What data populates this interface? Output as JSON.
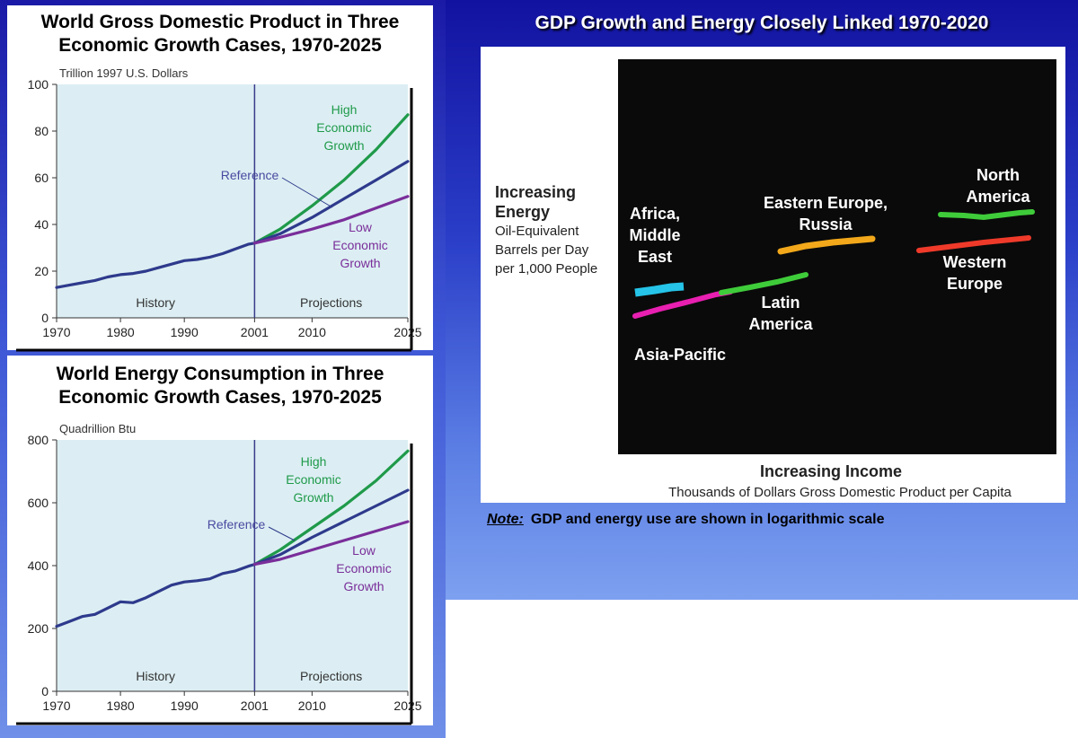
{
  "chart_data": [
    {
      "type": "line",
      "title": "World Gross Domestic Product in Three Economic Growth Cases, 1970-2025",
      "ylabel": "Trillion 1997 U.S. Dollars",
      "ylim": [
        0,
        100
      ],
      "yticks": [
        0,
        20,
        40,
        60,
        80,
        100
      ],
      "xticks": [
        1970,
        1980,
        1990,
        2001,
        2010,
        2025
      ],
      "xlim": [
        1970,
        2025
      ],
      "divider_x": 2001,
      "region_labels": [
        "History",
        "Projections"
      ],
      "series": [
        {
          "key": "history",
          "color": "#2e3a8c",
          "x": [
            1970,
            1972,
            1974,
            1976,
            1978,
            1980,
            1982,
            1984,
            1986,
            1988,
            1990,
            1992,
            1994,
            1996,
            1998,
            2000,
            2001
          ],
          "y": [
            13,
            14,
            15,
            16,
            17.5,
            18.5,
            19,
            20,
            21.5,
            23,
            24.5,
            25,
            26,
            27.5,
            29.5,
            31.5,
            32
          ]
        },
        {
          "key": "high",
          "name": "High Economic Growth",
          "color": "#1f9a4a",
          "x": [
            2001,
            2005,
            2010,
            2015,
            2020,
            2025
          ],
          "y": [
            32,
            38,
            48,
            59,
            72,
            87
          ]
        },
        {
          "key": "ref",
          "name": "Reference",
          "color": "#2e3a8c",
          "x": [
            2001,
            2005,
            2010,
            2015,
            2020,
            2025
          ],
          "y": [
            32,
            36,
            43,
            51,
            59,
            67
          ]
        },
        {
          "key": "low",
          "name": "Low Economic Growth",
          "color": "#7a2e9a",
          "x": [
            2001,
            2005,
            2010,
            2015,
            2020,
            2025
          ],
          "y": [
            32,
            34.5,
            38,
            42,
            47,
            52
          ]
        }
      ],
      "annotations": {
        "high": [
          "High",
          "Economic",
          "Growth"
        ],
        "reference": "Reference",
        "low": [
          "Low",
          "Economic",
          "Growth"
        ]
      }
    },
    {
      "type": "line",
      "title": "World Energy Consumption in Three Economic Growth Cases, 1970-2025",
      "ylabel": "Quadrillion Btu",
      "ylim": [
        0,
        800
      ],
      "yticks": [
        0,
        200,
        400,
        600,
        800
      ],
      "xticks": [
        1970,
        1980,
        1990,
        2001,
        2010,
        2025
      ],
      "xlim": [
        1970,
        2025
      ],
      "divider_x": 2001,
      "region_labels": [
        "History",
        "Projections"
      ],
      "series": [
        {
          "key": "history",
          "color": "#2e3a8c",
          "x": [
            1970,
            1972,
            1974,
            1976,
            1978,
            1980,
            1982,
            1984,
            1986,
            1988,
            1990,
            1992,
            1994,
            1996,
            1998,
            2000,
            2001
          ],
          "y": [
            207,
            222,
            238,
            245,
            265,
            285,
            282,
            298,
            318,
            338,
            348,
            352,
            358,
            375,
            383,
            398,
            404
          ]
        },
        {
          "key": "high",
          "name": "High Economic Growth",
          "color": "#1f9a4a",
          "x": [
            2001,
            2005,
            2010,
            2015,
            2020,
            2025
          ],
          "y": [
            404,
            450,
            520,
            590,
            670,
            765
          ]
        },
        {
          "key": "ref",
          "name": "Reference",
          "color": "#2e3a8c",
          "x": [
            2001,
            2005,
            2010,
            2015,
            2020,
            2025
          ],
          "y": [
            404,
            435,
            490,
            540,
            590,
            640
          ]
        },
        {
          "key": "low",
          "name": "Low Economic Growth",
          "color": "#7a2e9a",
          "x": [
            2001,
            2005,
            2010,
            2015,
            2020,
            2025
          ],
          "y": [
            404,
            420,
            450,
            480,
            510,
            540
          ]
        }
      ],
      "annotations": {
        "high": [
          "High",
          "Economic",
          "Growth"
        ],
        "reference": "Reference",
        "low": [
          "Low",
          "Economic",
          "Growth"
        ]
      }
    },
    {
      "type": "scatter",
      "title": "GDP Growth and Energy Closely Linked 1970-2020",
      "x_scale": "log",
      "y_scale": "log",
      "xlabel": "Increasing Income",
      "xlabel_sub": "Thousands of Dollars Gross Domestic Product per Capita",
      "ylabel": "Increasing Energy",
      "ylabel_sub": [
        "Oil-Equivalent",
        "Barrels per Day",
        "per 1,000 People"
      ],
      "regions": [
        {
          "key": "africa",
          "label": [
            "Africa,",
            "Middle",
            "East"
          ],
          "color": "#25c4e8"
        },
        {
          "key": "asia",
          "label": [
            "Asia-Pacific"
          ],
          "color": "#e81fb0"
        },
        {
          "key": "latam",
          "label": [
            "Latin",
            "America"
          ],
          "color": "#3fcc3a"
        },
        {
          "key": "eeurope",
          "label": [
            "Eastern Europe,",
            "Russia"
          ],
          "color": "#f2a81a"
        },
        {
          "key": "namerica",
          "label": [
            "North",
            "America"
          ],
          "color": "#3fcc3a"
        },
        {
          "key": "weurope",
          "label": [
            "Western",
            "Europe"
          ],
          "color": "#ef3a2a"
        }
      ]
    }
  ],
  "note": {
    "lead": "Note:",
    "text": "GDP and energy use are shown in logarithmic scale"
  }
}
